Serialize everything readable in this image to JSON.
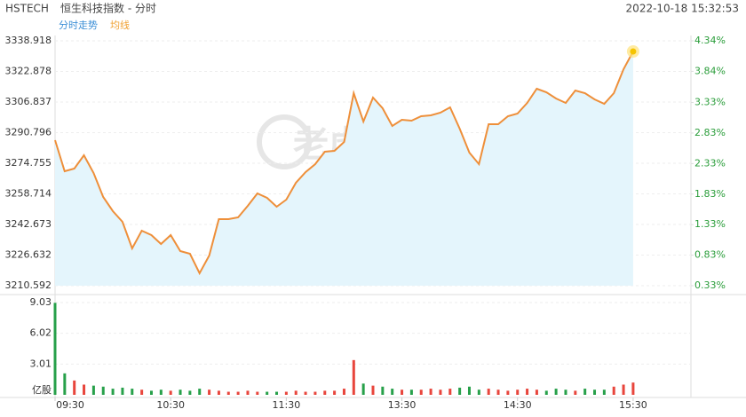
{
  "header": {
    "symbol": "HSTECH",
    "name": "恒生科技指数 - 分时",
    "datetime": "2022-10-18 15:32:53"
  },
  "watermark": "老虎社区",
  "chart_data": [
    {
      "type": "line",
      "legend": [
        {
          "name": "分时走势",
          "color": "#3c8fd6"
        },
        {
          "name": "均线",
          "color": "#f0a030"
        }
      ],
      "x": [
        "09:30",
        "09:35",
        "09:40",
        "09:45",
        "09:50",
        "09:55",
        "10:00",
        "10:05",
        "10:10",
        "10:15",
        "10:20",
        "10:25",
        "10:30",
        "10:35",
        "10:40",
        "10:45",
        "10:50",
        "10:55",
        "11:00",
        "11:05",
        "11:10",
        "11:15",
        "11:20",
        "11:25",
        "11:30",
        "11:35",
        "11:40",
        "11:45",
        "11:50",
        "11:55",
        "12:00",
        "13:05",
        "13:10",
        "13:15",
        "13:20",
        "13:25",
        "13:30",
        "13:35",
        "13:40",
        "13:45",
        "13:50",
        "13:55",
        "14:00",
        "14:05",
        "14:10",
        "14:15",
        "14:20",
        "14:25",
        "14:30",
        "14:35",
        "14:40",
        "14:45",
        "14:50",
        "14:55",
        "15:00",
        "15:05",
        "15:10",
        "15:15",
        "15:20",
        "15:25",
        "15:30"
      ],
      "series": [
        {
          "name": "分时走势",
          "color": "#ee8f3a",
          "fill": "#e4f5fc",
          "values": [
            3286.85,
            3270.57,
            3271.97,
            3278.94,
            3269.64,
            3257.09,
            3249.65,
            3244.07,
            3230.12,
            3239.42,
            3237.1,
            3232.45,
            3237.1,
            3228.73,
            3227.33,
            3217.1,
            3226.4,
            3245.47,
            3245.47,
            3246.39,
            3252.44,
            3258.95,
            3256.62,
            3251.97,
            3255.69,
            3264.53,
            3270.11,
            3274.29,
            3280.8,
            3281.27,
            3285.92,
            3311.49,
            3296.61,
            3309.16,
            3303.58,
            3294.28,
            3297.54,
            3297.07,
            3299.4,
            3299.86,
            3301.26,
            3304.05,
            3292.89,
            3280.34,
            3274.29,
            3295.21,
            3295.21,
            3299.4,
            3300.79,
            3306.37,
            3313.81,
            3311.95,
            3308.7,
            3306.37,
            3312.88,
            3311.49,
            3308.23,
            3305.91,
            3311.49,
            3324.04,
            3333.34
          ]
        }
      ],
      "xlim": [
        "09:30",
        "16:00"
      ],
      "xticks": [
        "09:30",
        "10:30",
        "11:30",
        "13:30",
        "14:30",
        "15:30"
      ],
      "ylim": [
        3210.592,
        3338.918
      ],
      "yticks": [
        3338.918,
        3322.878,
        3306.837,
        3290.796,
        3274.755,
        3258.714,
        3242.673,
        3226.632,
        3210.592
      ],
      "y2lim": [
        0.33,
        4.34
      ],
      "y2ticks": [
        {
          "value": 4.34,
          "label": "4.34%"
        },
        {
          "value": 3.84,
          "label": "3.84%"
        },
        {
          "value": 3.33,
          "label": "3.33%"
        },
        {
          "value": 2.83,
          "label": "2.83%"
        },
        {
          "value": 2.33,
          "label": "2.33%"
        },
        {
          "value": 1.83,
          "label": "1.83%"
        },
        {
          "value": 1.33,
          "label": "1.33%"
        },
        {
          "value": 0.83,
          "label": "0.83%"
        },
        {
          "value": 0.33,
          "label": "0.33%"
        }
      ],
      "grid": true
    },
    {
      "type": "bar",
      "up_color": "#e8453c",
      "down_color": "#27a04a",
      "values": [
        9.0,
        2.1,
        1.4,
        1.0,
        0.9,
        0.8,
        0.6,
        0.7,
        0.6,
        0.5,
        0.4,
        0.5,
        0.4,
        0.5,
        0.4,
        0.6,
        0.5,
        0.4,
        0.3,
        0.3,
        0.4,
        0.3,
        0.3,
        0.3,
        0.3,
        0.4,
        0.3,
        0.3,
        0.4,
        0.4,
        0.6,
        3.4,
        1.1,
        0.9,
        0.8,
        0.6,
        0.5,
        0.5,
        0.5,
        0.6,
        0.5,
        0.6,
        0.7,
        0.8,
        0.5,
        0.6,
        0.5,
        0.4,
        0.5,
        0.6,
        0.5,
        0.4,
        0.6,
        0.5,
        0.4,
        0.6,
        0.5,
        0.5,
        0.8,
        1.0,
        1.2
      ],
      "ylim": [
        0,
        9.03
      ],
      "yticks": [
        9.03,
        6.02,
        3.01
      ],
      "unit_label": "亿股"
    }
  ]
}
